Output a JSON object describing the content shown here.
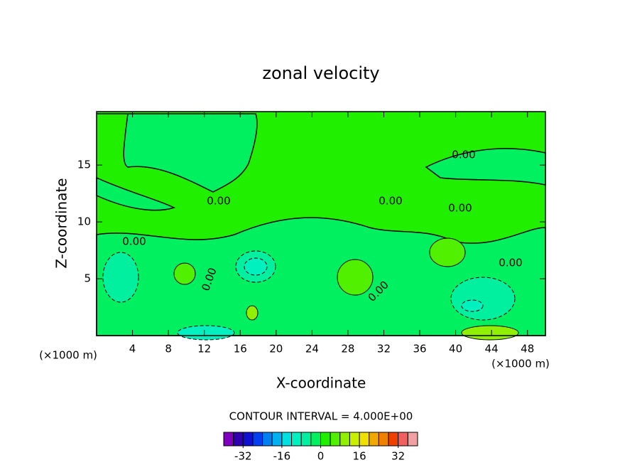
{
  "chart_data": {
    "type": "contour",
    "title": "zonal velocity",
    "x_label": "X-coordinate",
    "y_label": "Z-coordinate",
    "x_units": [
      "(×1000 m)",
      "(×1000 m)"
    ],
    "xlim": [
      0,
      50
    ],
    "xticks": [
      4,
      8,
      12,
      16,
      20,
      24,
      28,
      32,
      36,
      40,
      44,
      48
    ],
    "ylim": [
      0,
      19.7
    ],
    "yticks": [
      5,
      10,
      15
    ],
    "contour_labels": [
      "0.00",
      "0.00",
      "0.00",
      "0.00",
      "0.00",
      "0.00",
      "0.00",
      "0.00"
    ],
    "contour_interval_label": "CONTOUR INTERVAL = 4.000E+00",
    "colorbar": {
      "levels": [
        -40,
        -36,
        -32,
        -28,
        -24,
        -20,
        -16,
        -12,
        -8,
        -4,
        0,
        4,
        8,
        12,
        16,
        20,
        24,
        28,
        32,
        36,
        40
      ],
      "colors": [
        "#8000c0",
        "#3000b0",
        "#1010d0",
        "#0040f0",
        "#0080f0",
        "#00b0f0",
        "#00e0e0",
        "#00f0c0",
        "#00f0a0",
        "#00f060",
        "#20f000",
        "#50f000",
        "#90f000",
        "#c8f000",
        "#f0e000",
        "#f0a800",
        "#f08000",
        "#f04000",
        "#f06060",
        "#f0a0a0"
      ],
      "ticks": [
        -32,
        -16,
        0,
        16,
        32
      ]
    }
  }
}
